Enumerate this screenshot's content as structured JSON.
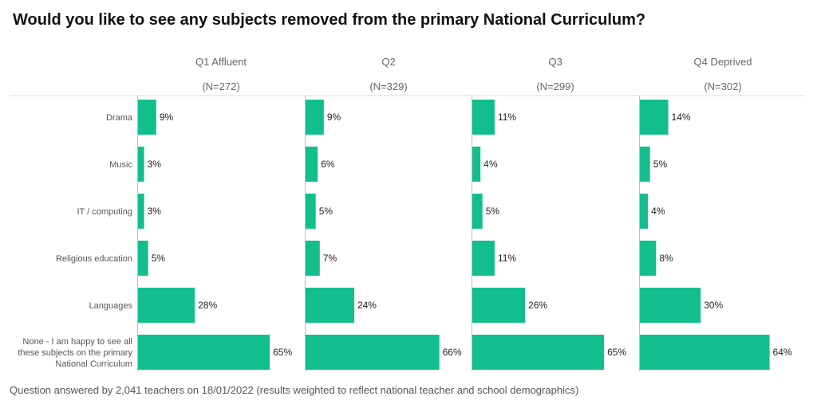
{
  "title": "Would you like to see any subjects removed from the primary National Curriculum?",
  "footnote": "Question answered by 2,041 teachers on 18/01/2022 (results weighted to reflect national teacher and school demographics)",
  "colors": {
    "bar": "#13be8d",
    "rule": "#dddddd",
    "axis": "#bbbbbb"
  },
  "chart_data": {
    "type": "bar",
    "orientation": "horizontal",
    "title": "Would you like to see any subjects removed from the primary National Curriculum?",
    "categories": [
      "Drama",
      "Music",
      "IT / computing",
      "Religious education",
      "Languages",
      "None - I am happy to see all these subjects on the primary National Curriculum"
    ],
    "series": [
      {
        "name": "Q1 Affluent",
        "n": "(N=272)",
        "values": [
          9,
          3,
          3,
          5,
          28,
          65
        ]
      },
      {
        "name": "Q2",
        "n": "(N=329)",
        "values": [
          9,
          6,
          5,
          7,
          24,
          66
        ]
      },
      {
        "name": "Q3",
        "n": "(N=299)",
        "values": [
          11,
          4,
          5,
          11,
          26,
          65
        ]
      },
      {
        "name": "Q4 Deprived",
        "n": "(N=302)",
        "values": [
          14,
          5,
          4,
          8,
          30,
          64
        ]
      }
    ],
    "value_suffix": "%",
    "xlim": [
      0,
      100
    ],
    "grid": false
  }
}
